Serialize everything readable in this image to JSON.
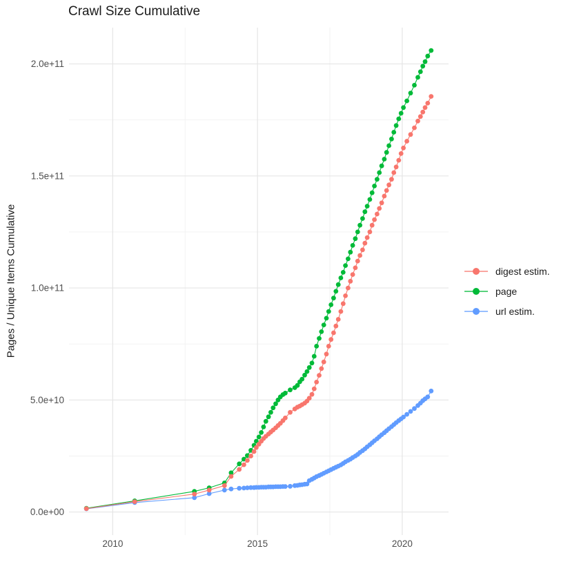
{
  "title": "Crawl Size Cumulative",
  "axes": {
    "y_label": "Pages / Unique Items Cumulative",
    "x_label": "",
    "x_ticks": [
      {
        "value": 2010,
        "label": "2010"
      },
      {
        "value": 2015,
        "label": "2015"
      },
      {
        "value": 2020,
        "label": "2020"
      }
    ],
    "x_minor": [
      2012.5,
      2017.5
    ],
    "y_ticks": [
      {
        "value": 0,
        "label": "0.0e+00"
      },
      {
        "value": 50000000000.0,
        "label": "5.0e+10"
      },
      {
        "value": 100000000000.0,
        "label": "1.0e+11"
      },
      {
        "value": 150000000000.0,
        "label": "1.5e+11"
      },
      {
        "value": 200000000000.0,
        "label": "2.0e+11"
      }
    ],
    "y_minor": [
      25000000000.0,
      75000000000.0,
      125000000000.0,
      175000000000.0
    ]
  },
  "legend": {
    "position": "right",
    "items": [
      {
        "id": "digest-estim",
        "label": "digest estim.",
        "color": "#F8766D"
      },
      {
        "id": "page",
        "label": "page",
        "color": "#00BA38"
      },
      {
        "id": "url-estim",
        "label": "url estim.",
        "color": "#619CFF"
      }
    ]
  },
  "style": {
    "background": "#ffffff",
    "grid_major": "#e5e5e5",
    "grid_minor": "#f1f1f1",
    "tick_label_color": "#4d4d4d",
    "text_color": "#1a1a1a",
    "point_radius": 3.4,
    "line_width": 1.1
  },
  "chart_data": {
    "type": "scatter",
    "mode": "line+points",
    "title": "Crawl Size Cumulative",
    "xlabel": "",
    "ylabel": "Pages / Unique Items Cumulative",
    "legend_position": "right",
    "grid": true,
    "xlim": [
      2008.49,
      2021.6
    ],
    "ylim": [
      -10300000000.0,
      216200000000.0
    ],
    "x": [
      2009.09,
      2010.76,
      2012.82,
      2013.33,
      2013.86,
      2014.09,
      2014.37,
      2014.53,
      2014.65,
      2014.77,
      2014.88,
      2014.96,
      2015.05,
      2015.13,
      2015.21,
      2015.29,
      2015.38,
      2015.46,
      2015.54,
      2015.63,
      2015.71,
      2015.79,
      2015.88,
      2015.96,
      2016.13,
      2016.29,
      2016.38,
      2016.46,
      2016.54,
      2016.63,
      2016.71,
      2016.79,
      2016.88,
      2016.96,
      2017.04,
      2017.13,
      2017.21,
      2017.29,
      2017.38,
      2017.46,
      2017.54,
      2017.63,
      2017.71,
      2017.79,
      2017.88,
      2017.96,
      2018.04,
      2018.13,
      2018.21,
      2018.29,
      2018.38,
      2018.46,
      2018.54,
      2018.63,
      2018.71,
      2018.79,
      2018.88,
      2018.96,
      2019.04,
      2019.13,
      2019.21,
      2019.29,
      2019.38,
      2019.46,
      2019.54,
      2019.63,
      2019.71,
      2019.79,
      2019.88,
      2019.96,
      2020.04,
      2020.16,
      2020.29,
      2020.42,
      2020.54,
      2020.63,
      2020.71,
      2020.79,
      2020.88,
      2021.0
    ],
    "series": [
      {
        "name": "digest estim.",
        "color": "#F8766D",
        "z": 3,
        "values": [
          1500000000.0,
          4600000000.0,
          8000000000.0,
          9800000000.0,
          11800000000.0,
          15900000000.0,
          19000000000.0,
          21100000000.0,
          23000000000.0,
          25000000000.0,
          27000000000.0,
          28800000000.0,
          30300000000.0,
          31600000000.0,
          32800000000.0,
          33800000000.0,
          34800000000.0,
          35700000000.0,
          36600000000.0,
          37600000000.0,
          38600000000.0,
          39600000000.0,
          40800000000.0,
          42000000000.0,
          44500000000.0,
          46000000000.0,
          46800000000.0,
          47300000000.0,
          47900000000.0,
          48600000000.0,
          49500000000.0,
          50800000000.0,
          52500000000.0,
          55000000000.0,
          58000000000.0,
          61000000000.0,
          64000000000.0,
          67000000000.0,
          70500000000.0,
          74000000000.0,
          77000000000.0,
          80000000000.0,
          83000000000.0,
          86000000000.0,
          89500000000.0,
          93000000000.0,
          96500000000.0,
          100000000000.0,
          103000000000.0,
          106000000000.0,
          109000000000.0,
          112000000000.0,
          114500000000.0,
          117000000000.0,
          120000000000.0,
          122500000000.0,
          125000000000.0,
          128000000000.0,
          130500000000.0,
          133000000000.0,
          135500000000.0,
          138000000000.0,
          141000000000.0,
          143500000000.0,
          146000000000.0,
          148500000000.0,
          151500000000.0,
          154000000000.0,
          157000000000.0,
          160000000000.0,
          162500000000.0,
          165500000000.0,
          168500000000.0,
          171500000000.0,
          174500000000.0,
          176500000000.0,
          178500000000.0,
          180500000000.0,
          182500000000.0,
          185500000000.0
        ]
      },
      {
        "name": "page",
        "color": "#00BA38",
        "z": 1,
        "values": [
          1700000000.0,
          5000000000.0,
          9200000000.0,
          10800000000.0,
          13000000000.0,
          17500000000.0,
          21500000000.0,
          23600000000.0,
          25200000000.0,
          27500000000.0,
          29800000000.0,
          31600000000.0,
          33500000000.0,
          35500000000.0,
          38000000000.0,
          40500000000.0,
          42500000000.0,
          44500000000.0,
          46500000000.0,
          48300000000.0,
          50000000000.0,
          51400000000.0,
          52400000000.0,
          53100000000.0,
          54500000000.0,
          55500000000.0,
          56500000000.0,
          58100000000.0,
          59300000000.0,
          61100000000.0,
          62700000000.0,
          64500000000.0,
          66500000000.0,
          69500000000.0,
          74000000000.0,
          77500000000.0,
          80500000000.0,
          83500000000.0,
          86500000000.0,
          89500000000.0,
          92500000000.0,
          95500000000.0,
          98500000000.0,
          101500000000.0,
          104500000000.0,
          107000000000.0,
          110000000000.0,
          113000000000.0,
          116000000000.0,
          119000000000.0,
          122000000000.0,
          125000000000.0,
          128000000000.0,
          131000000000.0,
          134000000000.0,
          136500000000.0,
          139500000000.0,
          142500000000.0,
          145500000000.0,
          148500000000.0,
          151500000000.0,
          154500000000.0,
          157500000000.0,
          160500000000.0,
          163500000000.0,
          166500000000.0,
          169500000000.0,
          172500000000.0,
          175500000000.0,
          178000000000.0,
          180500000000.0,
          183500000000.0,
          187000000000.0,
          190500000000.0,
          194000000000.0,
          196500000000.0,
          199000000000.0,
          201000000000.0,
          203500000000.0,
          206000000000.0
        ]
      },
      {
        "name": "url estim.",
        "color": "#619CFF",
        "z": 2,
        "values": [
          1400000000.0,
          4200000000.0,
          6400000000.0,
          8200000000.0,
          9800000000.0,
          10300000000.0,
          10600000000.0,
          10700000000.0,
          10800000000.0,
          10900000000.0,
          10900000000.0,
          11000000000.0,
          11000000000.0,
          11100000000.0,
          11100000000.0,
          11100000000.0,
          11200000000.0,
          11200000000.0,
          11200000000.0,
          11300000000.0,
          11300000000.0,
          11300000000.0,
          11400000000.0,
          11400000000.0,
          11500000000.0,
          11800000000.0,
          11900000000.0,
          12100000000.0,
          12200000000.0,
          12400000000.0,
          12500000000.0,
          14000000000.0,
          14600000000.0,
          15200000000.0,
          15800000000.0,
          16300000000.0,
          16800000000.0,
          17300000000.0,
          17900000000.0,
          18400000000.0,
          18900000000.0,
          19500000000.0,
          20000000000.0,
          20500000000.0,
          21000000000.0,
          21700000000.0,
          22400000000.0,
          23000000000.0,
          23600000000.0,
          24300000000.0,
          25000000000.0,
          25700000000.0,
          26600000000.0,
          27400000000.0,
          28200000000.0,
          29100000000.0,
          30000000000.0,
          30900000000.0,
          31800000000.0,
          32700000000.0,
          33600000000.0,
          34500000000.0,
          35400000000.0,
          36300000000.0,
          37200000000.0,
          38100000000.0,
          39000000000.0,
          39900000000.0,
          40800000000.0,
          41600000000.0,
          42400000000.0,
          43600000000.0,
          44900000000.0,
          46200000000.0,
          47500000000.0,
          48600000000.0,
          49700000000.0,
          50500000000.0,
          51400000000.0,
          54000000000.0
        ]
      }
    ]
  }
}
